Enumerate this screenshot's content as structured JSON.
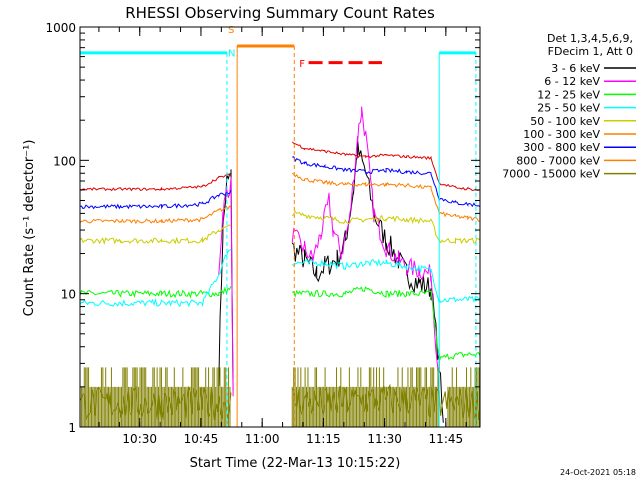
{
  "chart_data": {
    "type": "line",
    "title": "RHESSI Observing Summary Count Rates",
    "xlabel": "Start Time (22-Mar-13 10:15:22)",
    "ylabel": "Count Rate (s⁻¹ detector⁻¹)",
    "yscale": "log",
    "ylim": [
      1,
      1000
    ],
    "xlim_minutes_after_1015": [
      0,
      98
    ],
    "x_ticks": [
      "10:30",
      "10:45",
      "11:00",
      "11:15",
      "11:30",
      "11:45"
    ],
    "y_ticks": [
      "1",
      "10",
      "100",
      "1000"
    ],
    "grid": false,
    "legend_position": "right",
    "legend_header": [
      "Det 1,3,4,5,6,9,",
      "FDecim 1, Att 0"
    ],
    "series": [
      {
        "name": "3 - 6 keV",
        "color": "#000000",
        "points": [
          [
            34,
            2.5
          ],
          [
            35,
            30
          ],
          [
            36,
            70
          ],
          [
            37,
            75
          ],
          [
            37.5,
            2
          ]
        ],
        "points_2": [
          [
            52,
            22
          ],
          [
            55,
            18
          ],
          [
            58,
            14
          ],
          [
            60,
            16
          ],
          [
            63,
            18
          ],
          [
            65,
            25
          ],
          [
            67,
            60
          ],
          [
            68,
            120
          ],
          [
            70,
            80
          ],
          [
            72,
            40
          ],
          [
            75,
            25
          ],
          [
            78,
            18
          ],
          [
            80,
            14
          ],
          [
            83,
            12
          ],
          [
            86,
            11
          ],
          [
            88,
            3
          ],
          [
            89,
            1
          ]
        ]
      },
      {
        "name": "6 - 12 keV",
        "color": "#ff00ff",
        "points": [
          [
            34,
            15
          ],
          [
            35,
            40
          ],
          [
            36,
            60
          ],
          [
            37,
            65
          ],
          [
            37.5,
            1.5
          ]
        ],
        "points_2": [
          [
            52,
            28
          ],
          [
            55,
            22
          ],
          [
            57,
            18
          ],
          [
            59,
            28
          ],
          [
            61,
            50
          ],
          [
            62,
            30
          ],
          [
            64,
            20
          ],
          [
            66,
            35
          ],
          [
            68,
            150
          ],
          [
            69,
            240
          ],
          [
            70,
            150
          ],
          [
            72,
            40
          ],
          [
            75,
            22
          ],
          [
            78,
            18
          ],
          [
            80,
            16
          ],
          [
            83,
            15
          ],
          [
            86,
            14
          ],
          [
            88,
            2
          ]
        ]
      },
      {
        "name": "12 - 25 keV",
        "color": "#00ff00",
        "points": [
          [
            0,
            10
          ],
          [
            10,
            10
          ],
          [
            20,
            10
          ],
          [
            30,
            10
          ],
          [
            34,
            10
          ],
          [
            37,
            11
          ]
        ],
        "points_2": [
          [
            52,
            10
          ],
          [
            60,
            10
          ],
          [
            65,
            10
          ],
          [
            70,
            11
          ],
          [
            75,
            10
          ],
          [
            80,
            10
          ],
          [
            86,
            10
          ],
          [
            88,
            3.2
          ],
          [
            90,
            3.4
          ],
          [
            95,
            3.5
          ],
          [
            98,
            3.5
          ]
        ]
      },
      {
        "name": "25 - 50 keV",
        "color": "#00ffff",
        "points": [
          [
            0,
            8.5
          ],
          [
            10,
            8.5
          ],
          [
            20,
            8.5
          ],
          [
            30,
            8.5
          ],
          [
            34,
            14
          ],
          [
            36,
            20
          ],
          [
            37,
            22
          ]
        ],
        "points_2": [
          [
            52,
            17
          ],
          [
            60,
            17
          ],
          [
            65,
            16
          ],
          [
            70,
            17
          ],
          [
            75,
            17
          ],
          [
            80,
            16
          ],
          [
            86,
            15
          ],
          [
            88,
            9
          ],
          [
            92,
            9
          ],
          [
            95,
            9
          ],
          [
            98,
            9
          ]
        ]
      },
      {
        "name": "50 - 100 keV",
        "color": "#cccc00",
        "points": [
          [
            0,
            25
          ],
          [
            10,
            25
          ],
          [
            20,
            25
          ],
          [
            30,
            25
          ],
          [
            34,
            30
          ],
          [
            37,
            32
          ]
        ],
        "points_2": [
          [
            52,
            40
          ],
          [
            60,
            37
          ],
          [
            65,
            35
          ],
          [
            70,
            36
          ],
          [
            75,
            37
          ],
          [
            80,
            36
          ],
          [
            86,
            35
          ],
          [
            88,
            25
          ],
          [
            92,
            25
          ],
          [
            95,
            25
          ],
          [
            98,
            25
          ]
        ]
      },
      {
        "name": "100 - 300 keV",
        "color": "#ff7f00",
        "points": [
          [
            0,
            35
          ],
          [
            10,
            35
          ],
          [
            20,
            35
          ],
          [
            30,
            36
          ],
          [
            34,
            42
          ],
          [
            37,
            45
          ]
        ],
        "points_2": [
          [
            52,
            80
          ],
          [
            55,
            72
          ],
          [
            60,
            68
          ],
          [
            65,
            66
          ],
          [
            70,
            66
          ],
          [
            75,
            66
          ],
          [
            80,
            65
          ],
          [
            86,
            62
          ],
          [
            88,
            40
          ],
          [
            92,
            38
          ],
          [
            95,
            37
          ],
          [
            98,
            36
          ]
        ]
      },
      {
        "name": "300 - 800 keV",
        "color": "#0000ff",
        "points": [
          [
            0,
            45
          ],
          [
            10,
            45
          ],
          [
            20,
            45
          ],
          [
            30,
            47
          ],
          [
            34,
            55
          ],
          [
            37,
            58
          ]
        ],
        "points_2": [
          [
            52,
            105
          ],
          [
            55,
            95
          ],
          [
            60,
            90
          ],
          [
            65,
            85
          ],
          [
            70,
            82
          ],
          [
            75,
            84
          ],
          [
            80,
            82
          ],
          [
            86,
            80
          ],
          [
            88,
            52
          ],
          [
            92,
            48
          ],
          [
            95,
            47
          ],
          [
            98,
            46
          ]
        ]
      },
      {
        "name": "800 - 7000 keV",
        "color": "#ff8000",
        "points": [
          [
            38.5,
            720
          ],
          [
            52.5,
            720
          ]
        ]
      },
      {
        "name": "7000 - 15000 keV",
        "color": "#808000",
        "points": [
          [
            0,
            1.5
          ],
          [
            10,
            1.5
          ],
          [
            20,
            1.5
          ],
          [
            30,
            1.5
          ],
          [
            37,
            1.5
          ]
        ],
        "points_2": [
          [
            52,
            1.6
          ],
          [
            60,
            1.5
          ],
          [
            70,
            1.6
          ],
          [
            80,
            1.6
          ],
          [
            88,
            1.5
          ],
          [
            95,
            1.5
          ],
          [
            98,
            1.5
          ]
        ]
      }
    ],
    "red_3_6_series_extra": {
      "name": "3 - 6 keV (red)",
      "color": "#e00000"
    },
    "annotations": {
      "markers": [
        {
          "label": "S",
          "color": "#ff8000",
          "x": 36
        },
        {
          "label": "N",
          "color": "#00ffff",
          "x": 36
        },
        {
          "label": "F",
          "color": "#ff0000",
          "x": 52
        }
      ],
      "flare_bar_color": "#ff0000",
      "saa_bar_color": "#00ffff",
      "night_line_color": "#ff8000"
    },
    "timestamp": "24-Oct-2021 05:18"
  }
}
